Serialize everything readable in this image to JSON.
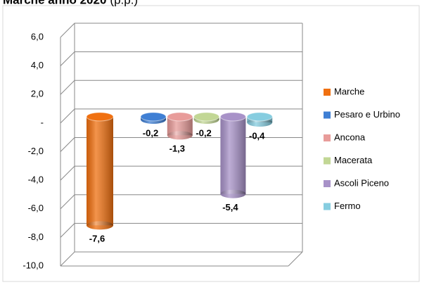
{
  "chart_data": {
    "type": "cylinder",
    "title": "Marche anno 2020",
    "subtitle": "(p.p.)",
    "series": [
      {
        "name": "Marche",
        "color": "#f07010",
        "values": [
          -7.6
        ],
        "value_labels": [
          "-7,6"
        ]
      },
      {
        "name": "Pesaro e Urbino",
        "color": "#3f7fd4",
        "values": [
          -0.2
        ],
        "value_labels": [
          "-0,2"
        ]
      },
      {
        "name": "Ancona",
        "color": "#e89c9a",
        "values": [
          -1.3
        ],
        "value_labels": [
          "-1,3"
        ]
      },
      {
        "name": "Macerata",
        "color": "#c2d795",
        "values": [
          -0.2
        ],
        "value_labels": [
          "-0,2"
        ]
      },
      {
        "name": "Ascoli Piceno",
        "color": "#a892c8",
        "values": [
          -5.4
        ],
        "value_labels": [
          "-5,4"
        ]
      },
      {
        "name": "Fermo",
        "color": "#86cde0",
        "values": [
          -0.4
        ],
        "value_labels": [
          "-0,4"
        ]
      }
    ],
    "ylim": [
      -10,
      6
    ],
    "yticks": [
      {
        "value": -10,
        "label": "-10,0"
      },
      {
        "value": -8,
        "label": "-8,0"
      },
      {
        "value": -6,
        "label": "-6,0"
      },
      {
        "value": -4,
        "label": "-4,0"
      },
      {
        "value": -2,
        "label": "-2,0"
      },
      {
        "value": 0,
        "label": "-"
      },
      {
        "value": 2,
        "label": "2,0"
      },
      {
        "value": 4,
        "label": "4,0"
      },
      {
        "value": 6,
        "label": "6,0"
      }
    ],
    "grid": true,
    "legend": "right"
  }
}
